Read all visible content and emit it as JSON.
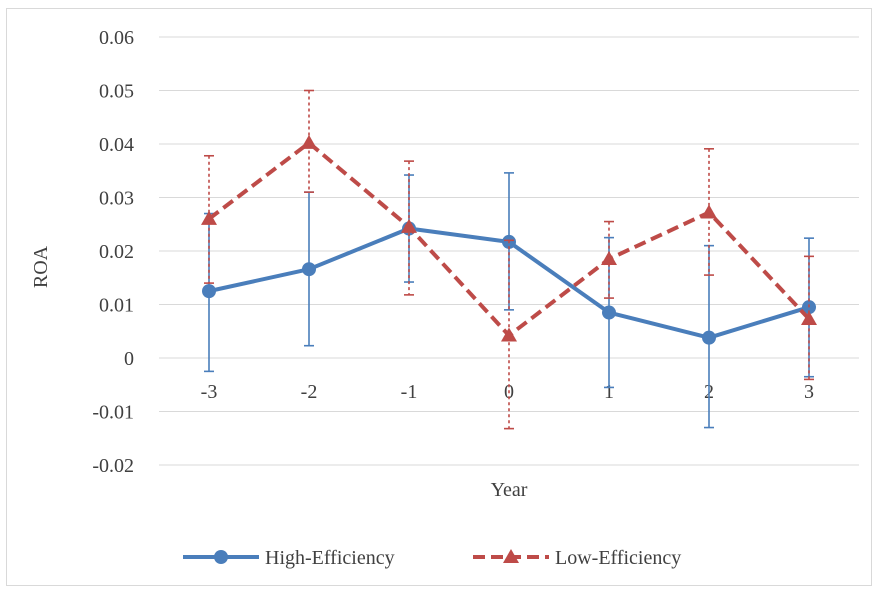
{
  "chart_data": {
    "type": "line",
    "title": "",
    "xlabel": "Year",
    "ylabel": "ROA",
    "ylim": [
      -0.02,
      0.06
    ],
    "yticks": [
      "-0.02",
      "-0.01",
      "0",
      "0.01",
      "0.02",
      "0.03",
      "0.04",
      "0.05",
      "0.06"
    ],
    "categories": [
      "-3",
      "-2",
      "-1",
      "0",
      "1",
      "2",
      "3"
    ],
    "grid": true,
    "legend_position": "bottom",
    "series": [
      {
        "name": "High-Efficiency",
        "color": "#4a7ebb",
        "line_style": "solid",
        "marker": "circle",
        "values": [
          0.0125,
          0.0166,
          0.0242,
          0.0217,
          0.0085,
          0.0038,
          0.0095
        ],
        "error_low": [
          -0.0025,
          0.0023,
          0.0142,
          0.009,
          -0.0055,
          -0.013,
          -0.0035
        ],
        "error_high": [
          0.027,
          0.031,
          0.0342,
          0.0346,
          0.0225,
          0.021,
          0.0224
        ]
      },
      {
        "name": "Low-Efficiency",
        "color": "#be4b48",
        "line_style": "dashed",
        "marker": "triangle",
        "values": [
          0.026,
          0.0402,
          0.0245,
          0.0042,
          0.0185,
          0.0272,
          0.0073
        ],
        "error_low": [
          0.014,
          0.031,
          0.0118,
          -0.0132,
          0.0112,
          0.0155,
          -0.004
        ],
        "error_high": [
          0.0378,
          0.05,
          0.0368,
          0.022,
          0.0255,
          0.0391,
          0.019
        ]
      }
    ]
  }
}
